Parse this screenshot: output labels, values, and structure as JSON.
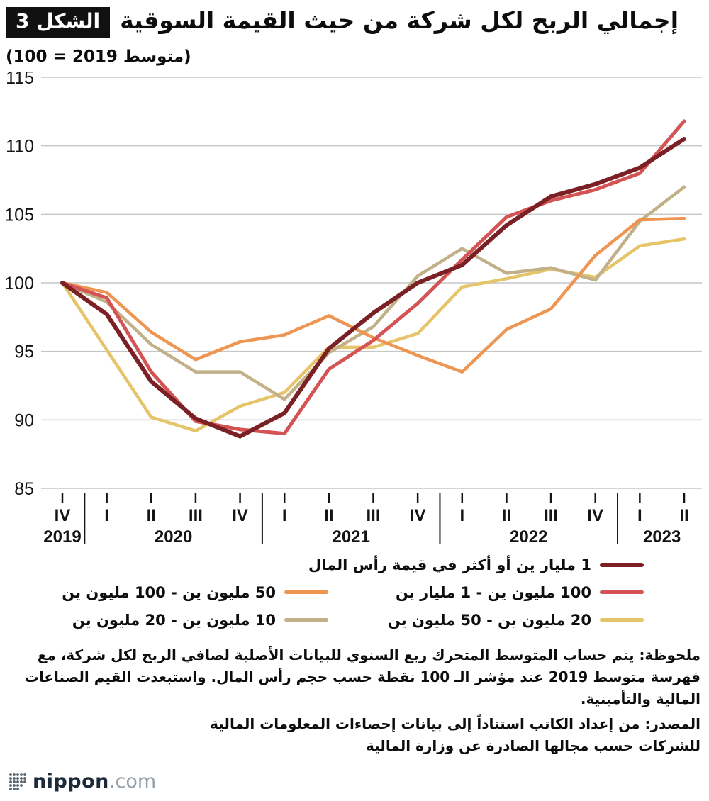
{
  "figure_label": "الشكل 3",
  "logo": {
    "name": "nippon",
    "suffix": ".com"
  },
  "note": "ملحوظة: يتم حساب المتوسط المتحرك ربع السنوي للبيانات الأصلية لصافي الربح لكل شركة، مع فهرسة متوسط 2019 عند مؤشر الـ 100 نقطة حسب حجم رأس المال. واستبعدت القيم الصناعات المالية والتأمينية.",
  "source": "المصدر: من إعداد الكاتب استناداً إلى بيانات إحصاءات المعلومات المالية للشركات حسب مجالها الصادرة عن وزارة المالية",
  "chart_data": {
    "type": "line",
    "title": "إجمالي الربح لكل شركة من حيث القيمة السوقية",
    "subtitle": "(متوسط 2019 = 100)",
    "ylim": [
      85,
      115
    ],
    "yticks": [
      85,
      90,
      95,
      100,
      105,
      110,
      115
    ],
    "grid": "horizontal",
    "legend_position": "bottom",
    "x_quarters": [
      "IV",
      "I",
      "II",
      "III",
      "IV",
      "I",
      "II",
      "III",
      "IV",
      "I",
      "II",
      "III",
      "IV",
      "I",
      "II"
    ],
    "year_groups": [
      {
        "label": "2019",
        "count": 1
      },
      {
        "label": "2020",
        "count": 4
      },
      {
        "label": "2021",
        "count": 4
      },
      {
        "label": "2022",
        "count": 4
      },
      {
        "label": "2023",
        "count": 2
      }
    ],
    "series": [
      {
        "name": "1 مليار ين أو أكثر في قيمة رأس المال",
        "color": "#7b2125",
        "width": 6,
        "z": 5,
        "values": [
          100,
          97.7,
          92.8,
          90.1,
          88.8,
          90.5,
          95.2,
          97.8,
          100.0,
          101.3,
          104.2,
          106.3,
          107.2,
          108.4,
          110.5
        ]
      },
      {
        "name": "100 مليون ين - 1 مليار ين",
        "color": "#d45456",
        "width": 5,
        "z": 4,
        "values": [
          100,
          98.9,
          93.5,
          89.9,
          89.3,
          89.0,
          93.7,
          95.8,
          98.5,
          101.7,
          104.8,
          106.0,
          106.8,
          108.0,
          111.8
        ]
      },
      {
        "name": "50 مليون ين - 100 مليون ين",
        "color": "#ef9552",
        "width": 4.5,
        "z": 3,
        "values": [
          100,
          99.3,
          96.4,
          94.4,
          95.7,
          96.2,
          97.6,
          96.0,
          94.7,
          93.5,
          96.6,
          98.1,
          102.0,
          104.6,
          104.7
        ]
      },
      {
        "name": "20 مليون ين - 50 مليون ين",
        "color": "#e6c469",
        "width": 4.5,
        "z": 1,
        "values": [
          100,
          95.1,
          90.2,
          89.2,
          91.0,
          92.0,
          95.3,
          95.3,
          96.3,
          99.7,
          100.3,
          101.0,
          100.4,
          102.7,
          103.2
        ]
      },
      {
        "name": "10 مليون ين - 20 مليون ين",
        "color": "#c2b089",
        "width": 4.5,
        "z": 2,
        "values": [
          100,
          98.6,
          95.5,
          93.5,
          93.5,
          91.5,
          94.9,
          96.8,
          100.5,
          102.5,
          100.7,
          101.1,
          100.2,
          104.5,
          107.0
        ]
      }
    ]
  }
}
